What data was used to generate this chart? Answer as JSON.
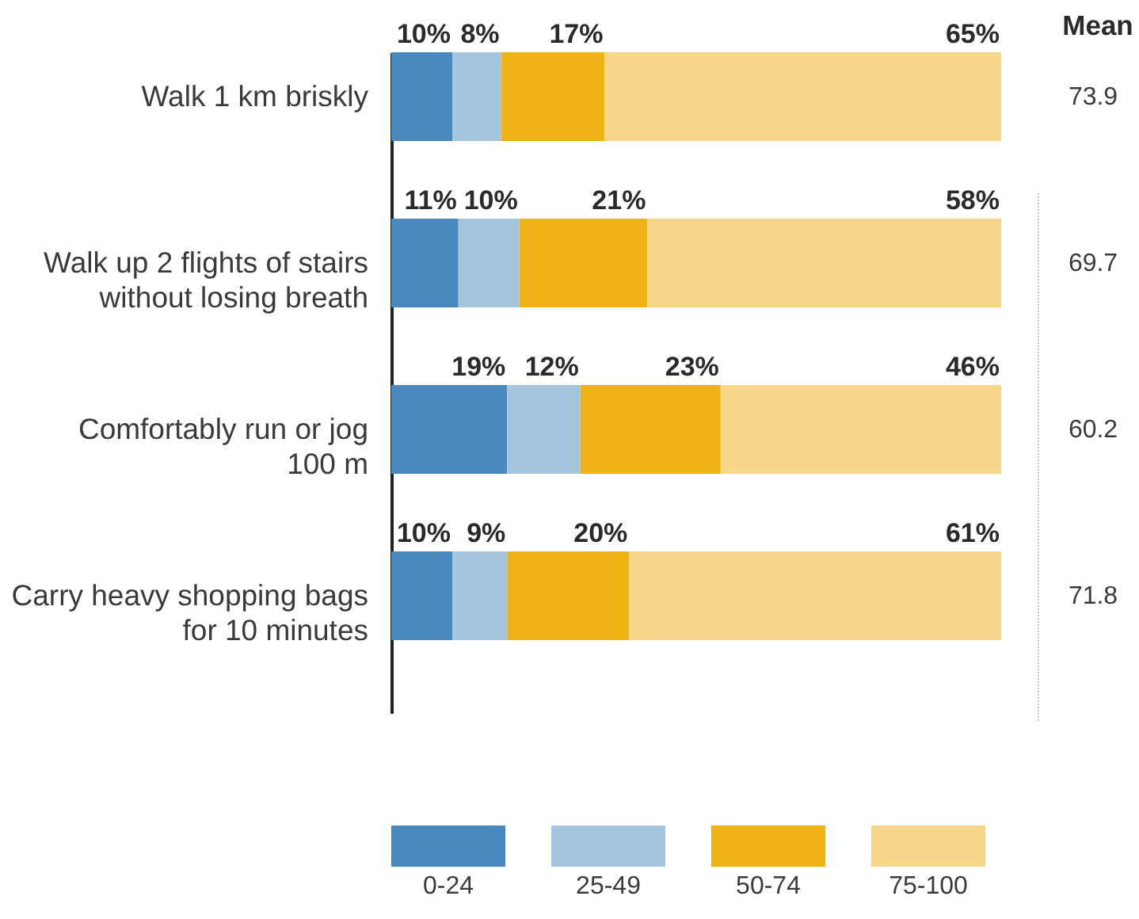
{
  "chart_data": {
    "type": "bar",
    "orientation": "horizontal",
    "stacked": true,
    "categories": [
      "Walk 1 km briskly",
      "Walk up 2 flights of stairs\nwithout losing breath",
      "Comfortably run or jog\n100 m",
      "Carry heavy shopping bags\nfor 10 minutes"
    ],
    "series": [
      {
        "name": "0-24",
        "color": "#4a89bf",
        "values": [
          10,
          11,
          19,
          10
        ],
        "value_labels": [
          "10%",
          "11%",
          "19%",
          "10%"
        ]
      },
      {
        "name": "25-49",
        "color": "#a5c4de",
        "values": [
          8,
          10,
          12,
          9
        ],
        "value_labels": [
          "8%",
          "10%",
          "12%",
          "9%"
        ]
      },
      {
        "name": "50-74",
        "color": "#efb315",
        "values": [
          17,
          21,
          23,
          20
        ],
        "value_labels": [
          "17%",
          "21%",
          "23%",
          "20%"
        ]
      },
      {
        "name": "75-100",
        "color": "#f6d78a",
        "values": [
          65,
          58,
          46,
          61
        ],
        "value_labels": [
          "65%",
          "58%",
          "46%",
          "61%"
        ]
      }
    ],
    "xlim": [
      0,
      100
    ],
    "tick_labels": "y",
    "grid": false,
    "legend": "bottom",
    "annotations": [
      "Mean",
      "73.9",
      "69.7",
      "60.2",
      "71.8"
    ]
  }
}
